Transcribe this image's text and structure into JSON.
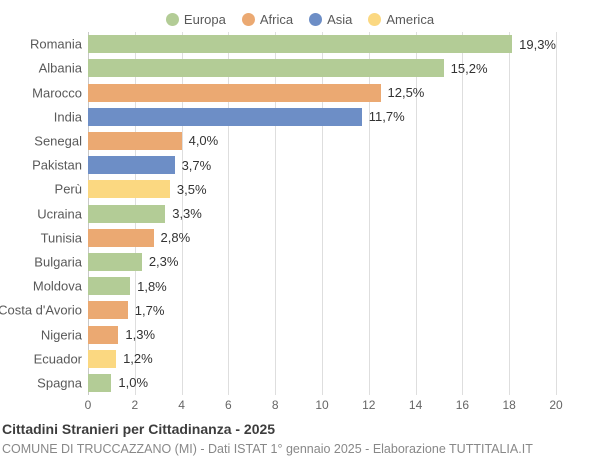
{
  "chart_data": {
    "type": "bar",
    "orientation": "horizontal",
    "title": "Cittadini Stranieri per Cittadinanza - 2025",
    "subtitle": "COMUNE DI TRUCCAZZANO (MI) - Dati ISTAT 1° gennaio 2025 - Elaborazione TUTTITALIA.IT",
    "xlim": [
      0,
      20
    ],
    "x_ticks": [
      "0",
      "2",
      "4",
      "6",
      "8",
      "10",
      "12",
      "14",
      "16",
      "18",
      "20"
    ],
    "grid": true,
    "legend_position": "top",
    "legend": [
      {
        "label": "Europa",
        "color": "#b3cc96"
      },
      {
        "label": "Africa",
        "color": "#eba972"
      },
      {
        "label": "Asia",
        "color": "#6d8ec6"
      },
      {
        "label": "America",
        "color": "#fbd881"
      }
    ],
    "bars": [
      {
        "label": "Romania",
        "value": 19.3,
        "display": "19,3%",
        "group": "Europa"
      },
      {
        "label": "Albania",
        "value": 15.2,
        "display": "15,2%",
        "group": "Europa"
      },
      {
        "label": "Marocco",
        "value": 12.5,
        "display": "12,5%",
        "group": "Africa"
      },
      {
        "label": "India",
        "value": 11.7,
        "display": "11,7%",
        "group": "Asia"
      },
      {
        "label": "Senegal",
        "value": 4.0,
        "display": "4,0%",
        "group": "Africa"
      },
      {
        "label": "Pakistan",
        "value": 3.7,
        "display": "3,7%",
        "group": "Asia"
      },
      {
        "label": "Perù",
        "value": 3.5,
        "display": "3,5%",
        "group": "America"
      },
      {
        "label": "Ucraina",
        "value": 3.3,
        "display": "3,3%",
        "group": "Europa"
      },
      {
        "label": "Tunisia",
        "value": 2.8,
        "display": "2,8%",
        "group": "Africa"
      },
      {
        "label": "Bulgaria",
        "value": 2.3,
        "display": "2,3%",
        "group": "Europa"
      },
      {
        "label": "Moldova",
        "value": 1.8,
        "display": "1,8%",
        "group": "Europa"
      },
      {
        "label": "Costa d'Avorio",
        "value": 1.7,
        "display": "1,7%",
        "group": "Africa"
      },
      {
        "label": "Nigeria",
        "value": 1.3,
        "display": "1,3%",
        "group": "Africa"
      },
      {
        "label": "Ecuador",
        "value": 1.2,
        "display": "1,2%",
        "group": "America"
      },
      {
        "label": "Spagna",
        "value": 1.0,
        "display": "1,0%",
        "group": "Europa"
      }
    ]
  }
}
